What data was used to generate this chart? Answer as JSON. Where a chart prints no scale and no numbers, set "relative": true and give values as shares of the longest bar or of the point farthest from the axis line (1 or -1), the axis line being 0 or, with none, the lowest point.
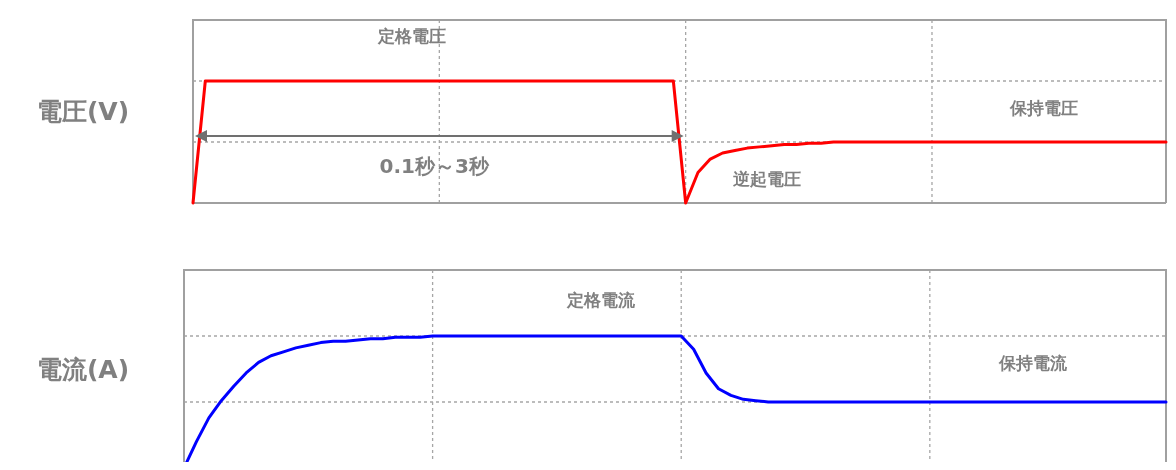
{
  "chart_data": [
    {
      "type": "line",
      "relative": true,
      "ylabel": "電圧(V)",
      "grid": true,
      "line_style": "solid",
      "marker": "none",
      "categories": [
        null,
        null,
        null,
        null,
        null,
        null,
        null,
        null,
        null,
        null,
        null,
        null,
        null,
        null,
        null,
        null,
        null,
        null,
        null,
        null,
        null,
        null,
        null,
        null,
        null,
        null,
        null,
        null,
        null,
        null,
        null,
        null,
        null,
        null,
        null,
        null,
        null,
        null,
        null,
        null,
        null,
        null,
        null,
        null,
        null,
        null,
        null,
        null,
        null,
        null,
        null,
        null,
        null,
        null,
        null,
        null,
        null,
        null,
        null,
        null,
        null,
        null,
        null,
        null,
        null,
        null,
        null,
        null,
        null,
        null,
        null,
        null,
        null,
        null,
        null,
        null,
        null,
        null,
        null,
        null
      ],
      "annotations": [
        "定格電圧",
        "0.1秒～3秒",
        "逆起電圧",
        "保持電圧"
      ],
      "series": [
        {
          "color": "#ff0000",
          "values": [
            0,
            1,
            1,
            1,
            1,
            1,
            1,
            1,
            1,
            1,
            1,
            1,
            1,
            1,
            1,
            1,
            1,
            1,
            1,
            1,
            1,
            1,
            1,
            1,
            1,
            1,
            1,
            1,
            1,
            1,
            1,
            1,
            1,
            1,
            1,
            1,
            1,
            1,
            1,
            1,
            0,
            0.25,
            0.36,
            0.41,
            0.43,
            0.45,
            0.46,
            0.47,
            0.48,
            0.48,
            0.49,
            0.49,
            0.5,
            0.5,
            0.5,
            0.5,
            0.5,
            0.5,
            0.5,
            0.5,
            0.5,
            0.5,
            0.5,
            0.5,
            0.5,
            0.5,
            0.5,
            0.5,
            0.5,
            0.5,
            0.5,
            0.5,
            0.5,
            0.5,
            0.5,
            0.5,
            0.5,
            0.5,
            0.5,
            0.5
          ]
        }
      ]
    },
    {
      "type": "line",
      "relative": true,
      "ylabel": "電流(A)",
      "grid": true,
      "line_style": "solid",
      "marker": "none",
      "categories": [
        null,
        null,
        null,
        null,
        null,
        null,
        null,
        null,
        null,
        null,
        null,
        null,
        null,
        null,
        null,
        null,
        null,
        null,
        null,
        null,
        null,
        null,
        null,
        null,
        null,
        null,
        null,
        null,
        null,
        null,
        null,
        null,
        null,
        null,
        null,
        null,
        null,
        null,
        null,
        null,
        null,
        null,
        null,
        null,
        null,
        null,
        null,
        null,
        null,
        null,
        null,
        null,
        null,
        null,
        null,
        null,
        null,
        null,
        null,
        null,
        null,
        null,
        null,
        null,
        null,
        null,
        null,
        null,
        null,
        null,
        null,
        null,
        null,
        null,
        null,
        null,
        null,
        null,
        null,
        null
      ],
      "annotations": [
        "定格電流",
        "保持電流"
      ],
      "series": [
        {
          "color": "#0000ff",
          "values": [
            0,
            0.2,
            0.38,
            0.51,
            0.62,
            0.72,
            0.8,
            0.85,
            0.88,
            0.91,
            0.93,
            0.95,
            0.96,
            0.96,
            0.97,
            0.98,
            0.98,
            0.99,
            0.99,
            0.99,
            1,
            1,
            1,
            1,
            1,
            1,
            1,
            1,
            1,
            1,
            1,
            1,
            1,
            1,
            1,
            1,
            1,
            1,
            1,
            1,
            1,
            0.9,
            0.72,
            0.6,
            0.55,
            0.52,
            0.51,
            0.5,
            0.5,
            0.5,
            0.5,
            0.5,
            0.5,
            0.5,
            0.5,
            0.5,
            0.5,
            0.5,
            0.5,
            0.5,
            0.5,
            0.5,
            0.5,
            0.5,
            0.5,
            0.5,
            0.5,
            0.5,
            0.5,
            0.5,
            0.5,
            0.5,
            0.5,
            0.5,
            0.5,
            0.5,
            0.5,
            0.5,
            0.5,
            0.5
          ]
        }
      ]
    }
  ]
}
